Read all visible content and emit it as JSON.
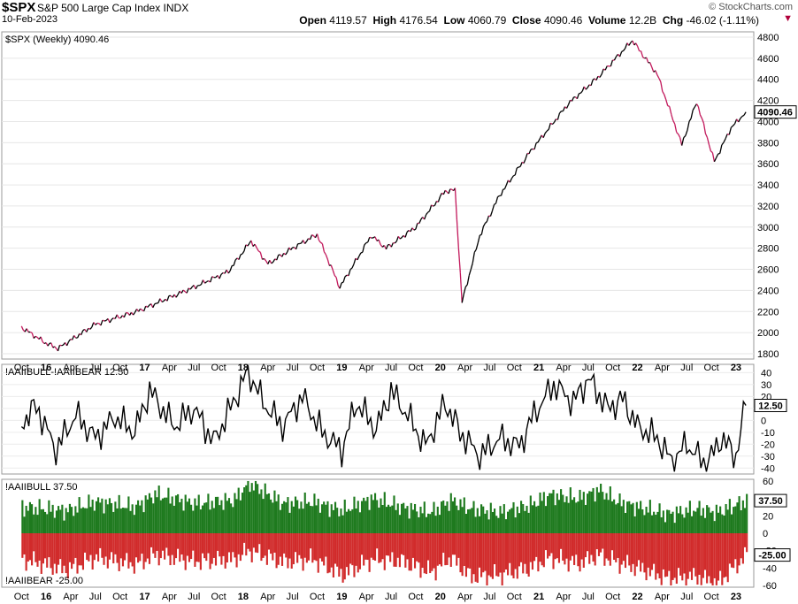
{
  "header": {
    "symbol": "$SPX",
    "description": "S&P 500 Large Cap Index  INDX",
    "date": "10-Feb-2023",
    "brand": "© StockCharts.com",
    "ohlc": {
      "open_label": "Open",
      "open": "4119.57",
      "high_label": "High",
      "high": "4176.54",
      "low_label": "Low",
      "low": "4060.79",
      "close_label": "Close",
      "close": "4090.46",
      "volume_label": "Volume",
      "volume": "12.2B",
      "chg_label": "Chg",
      "chg": "-46.02 (-1.11%)"
    },
    "chg_arrow": "▼"
  },
  "chart_data": [
    {
      "type": "line",
      "title": "$SPX (Weekly) 4090.46",
      "last_value": "4090.46",
      "ylim": [
        1750,
        4850
      ],
      "yticks": [
        "4800",
        "4600",
        "4400",
        "4200",
        "4000",
        "3800",
        "3600",
        "3400",
        "3200",
        "3000",
        "2800",
        "2600",
        "2400",
        "2200",
        "2000",
        "1800"
      ],
      "x": [
        2015.75,
        2016.0,
        2016.12,
        2016.5,
        2016.92,
        2017.5,
        2017.85,
        2018.08,
        2018.25,
        2018.5,
        2018.75,
        2018.98,
        2019.3,
        2019.45,
        2019.75,
        2020.05,
        2020.15,
        2020.22,
        2020.4,
        2020.6,
        2020.9,
        2021.3,
        2021.6,
        2021.95,
        2022.0,
        2022.2,
        2022.45,
        2022.6,
        2022.78,
        2022.95,
        2023.1
      ],
      "values": [
        2050,
        1900,
        1850,
        2080,
        2200,
        2430,
        2580,
        2870,
        2650,
        2800,
        2930,
        2430,
        2920,
        2800,
        3000,
        3340,
        3350,
        2290,
        2920,
        3300,
        3700,
        4170,
        4420,
        4770,
        4700,
        4450,
        3780,
        4190,
        3620,
        3940,
        4090
      ],
      "color": "#000000",
      "down_color": "#c2185b"
    },
    {
      "type": "line",
      "title": "!AAIIBULL-!AAIIBEAR 12.50",
      "last_value": "12.50",
      "ylim": [
        -45,
        47
      ],
      "yticks": [
        "40",
        "30",
        "20",
        "10",
        "0",
        "-10",
        "-20",
        "-30",
        "-40"
      ],
      "x": [
        2015.75,
        2015.9,
        2016.1,
        2016.3,
        2016.5,
        2016.7,
        2016.9,
        2017.05,
        2017.3,
        2017.5,
        2017.7,
        2017.9,
        2018.05,
        2018.2,
        2018.4,
        2018.6,
        2018.8,
        2019.0,
        2019.15,
        2019.35,
        2019.5,
        2019.7,
        2019.85,
        2020.05,
        2020.2,
        2020.4,
        2020.6,
        2020.8,
        2020.95,
        2021.15,
        2021.35,
        2021.5,
        2021.7,
        2021.85,
        2022.0,
        2022.2,
        2022.35,
        2022.5,
        2022.7,
        2022.85,
        2023.0,
        2023.1
      ],
      "values": [
        -2,
        12,
        -25,
        5,
        -15,
        3,
        -10,
        25,
        -5,
        10,
        -18,
        15,
        42,
        15,
        -5,
        20,
        -10,
        -25,
        15,
        -8,
        25,
        0,
        -22,
        15,
        -10,
        -30,
        -15,
        -22,
        5,
        30,
        15,
        35,
        10,
        18,
        -5,
        -15,
        -35,
        -20,
        -38,
        -15,
        -30,
        12.5
      ],
      "color": "#000000"
    },
    {
      "type": "bar",
      "title": "!AAIIBULL 37.50",
      "bottom_title": "!AAIIBEAR -25.00",
      "ylim": [
        -62,
        62
      ],
      "yticks": [
        "60",
        "40",
        "20",
        "0",
        "-20",
        "-40",
        "-60"
      ],
      "tick_values": [
        60,
        40,
        20,
        0,
        -20,
        -40,
        -60
      ],
      "last_bull": "37.50",
      "last_bear": "-25.00",
      "bull_x": [
        2015.75,
        2016.2,
        2016.5,
        2016.9,
        2017.1,
        2017.5,
        2017.9,
        2018.05,
        2018.4,
        2018.7,
        2019.0,
        2019.3,
        2019.6,
        2019.9,
        2020.1,
        2020.3,
        2020.6,
        2020.9,
        2021.1,
        2021.4,
        2021.6,
        2021.8,
        2022.0,
        2022.3,
        2022.6,
        2022.8,
        2023.1
      ],
      "bull_values": [
        30,
        26,
        36,
        30,
        45,
        34,
        38,
        58,
        34,
        36,
        26,
        40,
        30,
        24,
        38,
        28,
        24,
        32,
        44,
        40,
        50,
        36,
        30,
        22,
        28,
        24,
        37.5
      ],
      "bear_values": [
        -30,
        -42,
        -28,
        -36,
        -25,
        -32,
        -30,
        -20,
        -33,
        -30,
        -48,
        -30,
        -32,
        -45,
        -28,
        -50,
        -48,
        -40,
        -28,
        -35,
        -25,
        -34,
        -40,
        -52,
        -50,
        -58,
        -25
      ],
      "bull_color": "#1e7a1e",
      "bear_color": "#d12b2b"
    }
  ],
  "x_axis": {
    "labels": [
      "Oct",
      "16",
      "Apr",
      "Jul",
      "Oct",
      "17",
      "Apr",
      "Jul",
      "Oct",
      "18",
      "Apr",
      "Jul",
      "Oct",
      "19",
      "Apr",
      "Jul",
      "Oct",
      "20",
      "Apr",
      "Jul",
      "Oct",
      "21",
      "Apr",
      "Jul",
      "Oct",
      "22",
      "Apr",
      "Jul",
      "Oct",
      "23"
    ],
    "positions": [
      2015.75,
      2016.0,
      2016.25,
      2016.5,
      2016.75,
      2017.0,
      2017.25,
      2017.5,
      2017.75,
      2018.0,
      2018.25,
      2018.5,
      2018.75,
      2019.0,
      2019.25,
      2019.5,
      2019.75,
      2020.0,
      2020.25,
      2020.5,
      2020.75,
      2021.0,
      2021.25,
      2021.5,
      2021.75,
      2022.0,
      2022.25,
      2022.5,
      2022.75,
      2023.0
    ]
  }
}
